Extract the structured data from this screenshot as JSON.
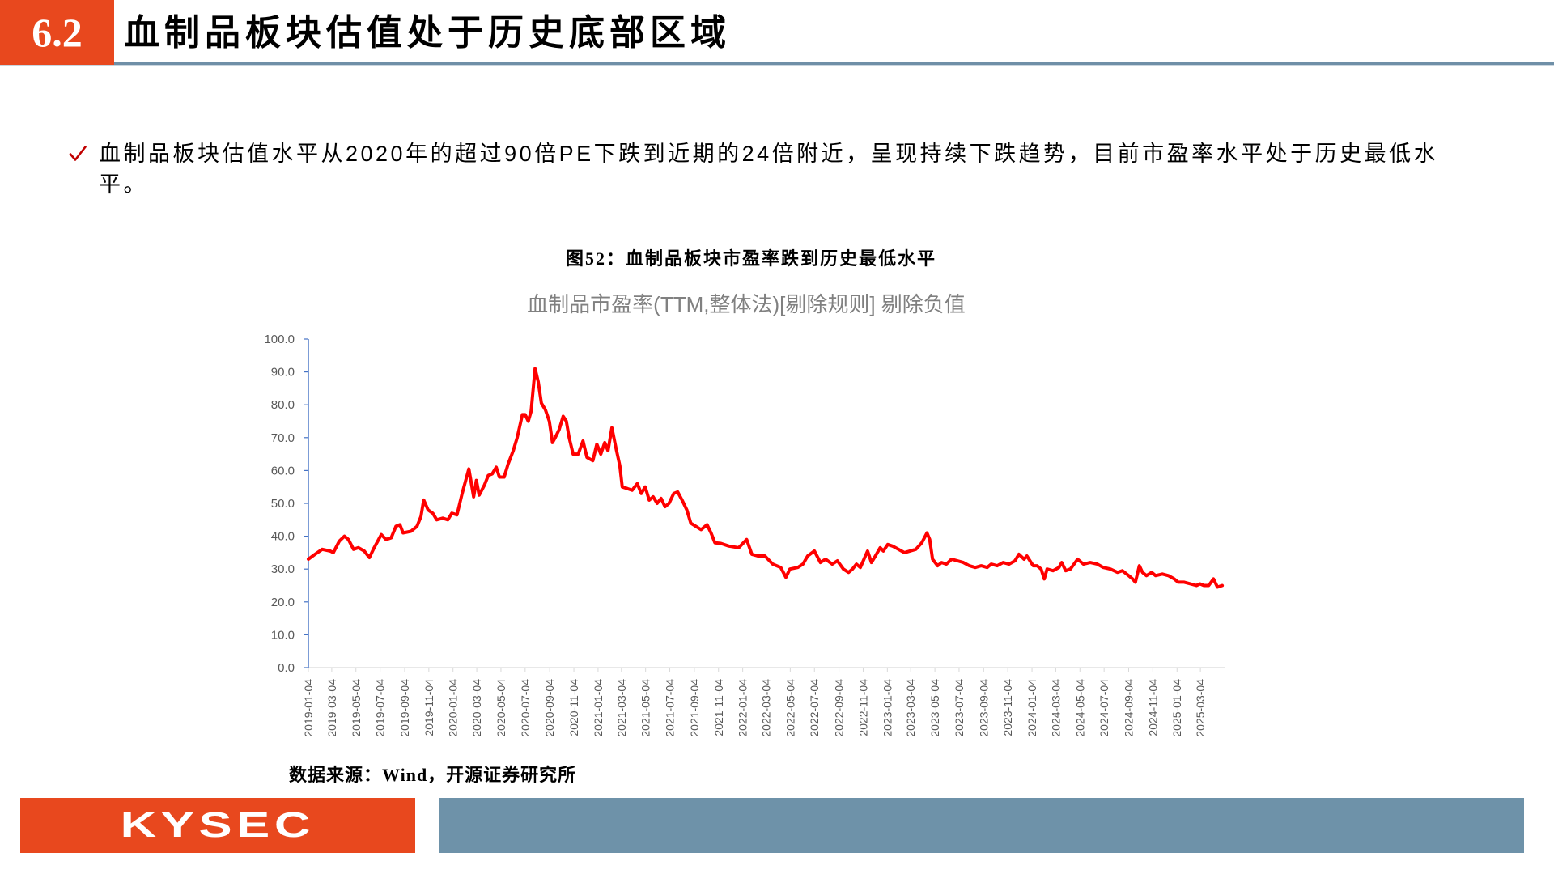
{
  "header": {
    "section_number": "6.2",
    "title": "血制品板块估值处于历史底部区域"
  },
  "bullet": {
    "icon": "check-icon",
    "text": "血制品板块估值水平从2020年的超过90倍PE下跌到近期的24倍附近，呈现持续下跌趋势，目前市盈率水平处于历史最低水平。"
  },
  "figure": {
    "caption": "图52：血制品板块市盈率跌到历史最低水平",
    "source": "数据来源：Wind，开源证券研究所"
  },
  "footer": {
    "logo_text": "KYSEC"
  },
  "colors": {
    "brand_orange": "#e8481e",
    "header_rule": "#6f8fa7",
    "footer_bar": "#6e92a9",
    "check_red": "#c00000",
    "axis_blue": "#4472c4",
    "axis_gray": "#d9d9d9",
    "line_red": "#ff0000"
  },
  "chart_data": {
    "type": "line",
    "title": "血制品市盈率(TTM,整体法)[剔除规则] 剔除负值",
    "xlabel": "",
    "ylabel": "",
    "ylim": [
      0,
      100
    ],
    "yticks": [
      0,
      10,
      20,
      30,
      40,
      50,
      60,
      70,
      80,
      90,
      100
    ],
    "ytick_labels": [
      "0.0",
      "10.0",
      "20.0",
      "30.0",
      "40.0",
      "50.0",
      "60.0",
      "70.0",
      "80.0",
      "90.0",
      "100.0"
    ],
    "xlim": [
      "2019-01-04",
      "2025-05-04"
    ],
    "xtick_labels": [
      "2019-01-04",
      "2019-03-04",
      "2019-05-04",
      "2019-07-04",
      "2019-09-04",
      "2019-11-04",
      "2020-01-04",
      "2020-03-04",
      "2020-05-04",
      "2020-07-04",
      "2020-09-04",
      "2020-11-04",
      "2021-01-04",
      "2021-03-04",
      "2021-05-04",
      "2021-07-04",
      "2021-09-04",
      "2021-11-04",
      "2022-01-04",
      "2022-03-04",
      "2022-05-04",
      "2022-07-04",
      "2022-09-04",
      "2022-11-04",
      "2023-01-04",
      "2023-03-04",
      "2023-05-04",
      "2023-07-04",
      "2023-09-04",
      "2023-11-04",
      "2024-01-04",
      "2024-03-04",
      "2024-05-04",
      "2024-07-04",
      "2024-09-04",
      "2024-11-04",
      "2025-01-04",
      "2025-03-04"
    ],
    "grid": false,
    "legend": "none",
    "series": [
      {
        "x": [
          "2019-01-04",
          "2019-01-21",
          "2019-02-08",
          "2019-02-28",
          "2019-03-08",
          "2019-03-23",
          "2019-04-05",
          "2019-04-15",
          "2019-04-28",
          "2019-05-10",
          "2019-05-25",
          "2019-06-07",
          "2019-06-19",
          "2019-07-07",
          "2019-07-19",
          "2019-08-01",
          "2019-08-13",
          "2019-08-23",
          "2019-08-31",
          "2019-09-20",
          "2019-10-05",
          "2019-10-15",
          "2019-10-22",
          "2019-11-02",
          "2019-11-14",
          "2019-11-24",
          "2019-12-09",
          "2019-12-22",
          "2020-01-01",
          "2020-01-14",
          "2020-01-27",
          "2020-02-13",
          "2020-02-25",
          "2020-03-03",
          "2020-03-10",
          "2020-03-23",
          "2020-04-02",
          "2020-04-12",
          "2020-04-22",
          "2020-04-30",
          "2020-05-12",
          "2020-05-22",
          "2020-06-04",
          "2020-06-14",
          "2020-06-27",
          "2020-07-04",
          "2020-07-12",
          "2020-07-19",
          "2020-07-29",
          "2020-08-06",
          "2020-08-14",
          "2020-08-24",
          "2020-09-03",
          "2020-09-11",
          "2020-09-18",
          "2020-09-28",
          "2020-10-08",
          "2020-10-16",
          "2020-10-23",
          "2020-11-02",
          "2020-11-15",
          "2020-11-27",
          "2020-12-07",
          "2020-12-22",
          "2021-01-01",
          "2021-01-11",
          "2021-01-21",
          "2021-01-29",
          "2021-02-08",
          "2021-02-18",
          "2021-02-28",
          "2021-03-06",
          "2021-03-19",
          "2021-03-31",
          "2021-04-13",
          "2021-04-23",
          "2021-05-03",
          "2021-05-13",
          "2021-05-23",
          "2021-06-02",
          "2021-06-12",
          "2021-06-22",
          "2021-07-02",
          "2021-07-14",
          "2021-07-24",
          "2021-08-04",
          "2021-08-16",
          "2021-08-26",
          "2021-09-08",
          "2021-09-21",
          "2021-10-06",
          "2021-10-16",
          "2021-10-26",
          "2021-11-10",
          "2021-11-30",
          "2021-12-25",
          "2022-01-14",
          "2022-01-27",
          "2022-02-11",
          "2022-03-01",
          "2022-03-21",
          "2022-04-10",
          "2022-04-23",
          "2022-05-03",
          "2022-05-23",
          "2022-06-05",
          "2022-06-17",
          "2022-07-04",
          "2022-07-19",
          "2022-08-01",
          "2022-08-18",
          "2022-08-31",
          "2022-09-15",
          "2022-09-28",
          "2022-10-08",
          "2022-10-18",
          "2022-10-28",
          "2022-11-15",
          "2022-11-25",
          "2022-12-05",
          "2022-12-17",
          "2022-12-25",
          "2023-01-05",
          "2023-01-17",
          "2023-02-01",
          "2023-02-16",
          "2023-03-02",
          "2023-03-17",
          "2023-04-01",
          "2023-04-14",
          "2023-04-21",
          "2023-04-28",
          "2023-05-11",
          "2023-05-21",
          "2023-06-02",
          "2023-06-15",
          "2023-06-30",
          "2023-07-15",
          "2023-07-30",
          "2023-08-14",
          "2023-08-29",
          "2023-09-13",
          "2023-09-23",
          "2023-10-08",
          "2023-10-23",
          "2023-11-07",
          "2023-11-22",
          "2023-12-02",
          "2023-12-15",
          "2023-12-22",
          "2024-01-07",
          "2024-01-17",
          "2024-01-27",
          "2024-02-04",
          "2024-02-11",
          "2024-02-26",
          "2024-03-12",
          "2024-03-19",
          "2024-03-29",
          "2024-04-10",
          "2024-04-28",
          "2024-05-13",
          "2024-05-30",
          "2024-06-17",
          "2024-07-02",
          "2024-07-20",
          "2024-08-07",
          "2024-08-19",
          "2024-09-04",
          "2024-09-14",
          "2024-09-21",
          "2024-10-01",
          "2024-10-09",
          "2024-10-19",
          "2024-11-01",
          "2024-11-11",
          "2024-11-28",
          "2024-12-13",
          "2024-12-28",
          "2025-01-07",
          "2025-01-22",
          "2025-02-07",
          "2025-02-22",
          "2025-03-03",
          "2025-03-13",
          "2025-03-25",
          "2025-04-06",
          "2025-04-16",
          "2025-04-28"
        ],
        "values": [
          33,
          34.5,
          36,
          35.5,
          35,
          38.5,
          40,
          39,
          36,
          36.5,
          35.5,
          33.5,
          36.5,
          40.5,
          39,
          39.5,
          43,
          43.5,
          41,
          41.5,
          43,
          46,
          51,
          48,
          47,
          45,
          45.5,
          45,
          47,
          46.5,
          53,
          60.5,
          52,
          57,
          52.5,
          55.5,
          58.5,
          59,
          61,
          58,
          58,
          62,
          66,
          70,
          77,
          77,
          75,
          78,
          91,
          87,
          80.5,
          78.5,
          75,
          68.5,
          70,
          72.5,
          76.5,
          75,
          70,
          65,
          65,
          69,
          64,
          63,
          68,
          65,
          68.5,
          66,
          73,
          67,
          61.5,
          55,
          54.5,
          54,
          56,
          53,
          55,
          51,
          52,
          50,
          51.5,
          49,
          50,
          53,
          53.5,
          51,
          48,
          44,
          43,
          42,
          43.5,
          41,
          38,
          37.8,
          37,
          36.5,
          39,
          34.5,
          34,
          34,
          31.5,
          30.5,
          27.5,
          30,
          30.5,
          31.5,
          34,
          35.5,
          32,
          33,
          31.5,
          32.5,
          30,
          29,
          30,
          31.5,
          30.5,
          35.5,
          32,
          34,
          36.5,
          35.5,
          37.5,
          37,
          36,
          35,
          35.5,
          36,
          38,
          41,
          39,
          33,
          31,
          32,
          31.5,
          33,
          32.5,
          32,
          31,
          30.5,
          31,
          30.5,
          31.5,
          31,
          32,
          31.5,
          32.5,
          34.5,
          33,
          34,
          31,
          31,
          30,
          27,
          30,
          29.5,
          30.5,
          32,
          29.5,
          30,
          33,
          31.5,
          32,
          31.5,
          30.5,
          30,
          29,
          29.5,
          28,
          27,
          26,
          31,
          29,
          28,
          29,
          28,
          28.5,
          28,
          27,
          26,
          26,
          25.5,
          25,
          25.5,
          25,
          25,
          27,
          24.5,
          25
        ]
      }
    ]
  }
}
